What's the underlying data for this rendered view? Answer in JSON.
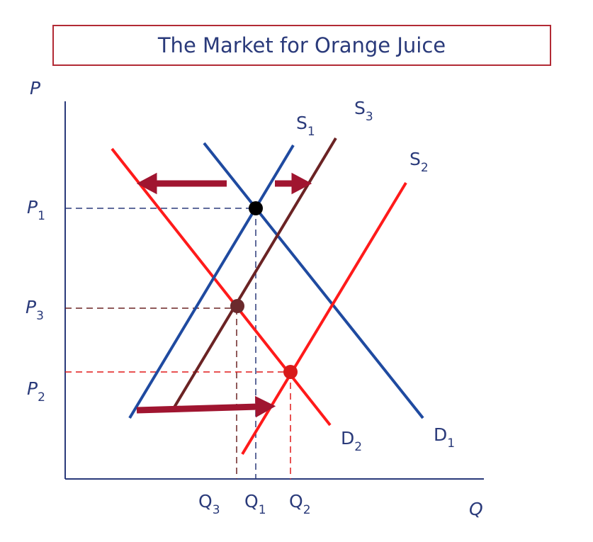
{
  "title": "The Market for Orange Juice",
  "axes": {
    "y": "P",
    "x": "Q"
  },
  "price_labels": [
    {
      "name": "P",
      "sub": "1"
    },
    {
      "name": "P",
      "sub": "3"
    },
    {
      "name": "P",
      "sub": "2"
    }
  ],
  "quantity_labels": [
    {
      "name": "Q",
      "sub": "3"
    },
    {
      "name": "Q",
      "sub": "1"
    },
    {
      "name": "Q",
      "sub": "2"
    }
  ],
  "curves": {
    "S1": {
      "name": "S",
      "sub": "1"
    },
    "S2": {
      "name": "S",
      "sub": "2"
    },
    "S3": {
      "name": "S",
      "sub": "3"
    },
    "D1": {
      "name": "D",
      "sub": "1"
    },
    "D2": {
      "name": "D",
      "sub": "2"
    }
  },
  "colors": {
    "axis": "#2a3a7a",
    "blue_curve": "#1f4aa0",
    "red_curve": "#ff1a1a",
    "brown_curve": "#6b2324",
    "arrow": "#a01530",
    "title_border": "#b22a35",
    "point_e1": "#000000",
    "point_e2": "#d81a1a",
    "point_e3": "#6b2a2d"
  }
}
